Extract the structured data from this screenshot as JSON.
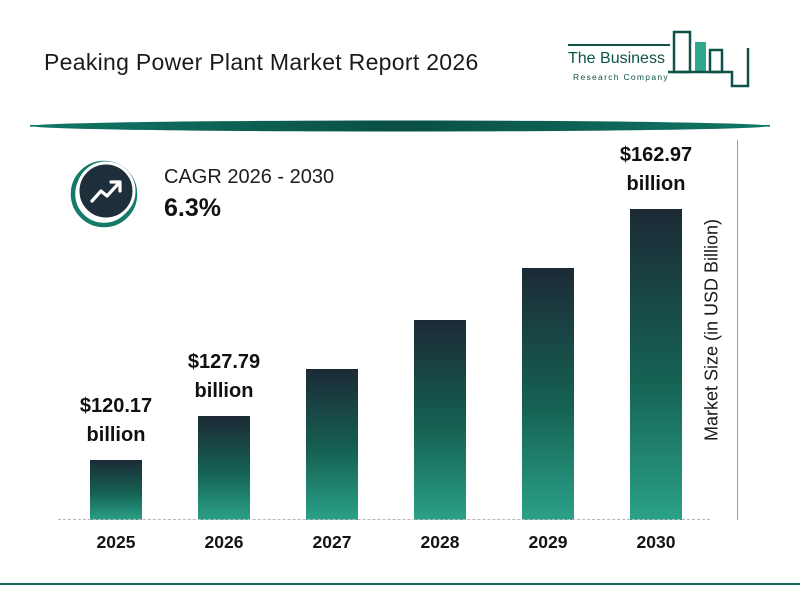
{
  "header": {
    "title": "Peaking Power Plant Market Report 2026"
  },
  "logo": {
    "line1": "The Business",
    "line2": "Research Company"
  },
  "cagr": {
    "label": "CAGR 2026 - 2030",
    "value": "6.3%"
  },
  "chart_data": {
    "type": "bar",
    "title": "Peaking Power Plant Market Report 2026",
    "xlabel": "",
    "ylabel": "Market Size (in USD Billion)",
    "categories": [
      "2025",
      "2026",
      "2027",
      "2028",
      "2029",
      "2030"
    ],
    "values": [
      120.17,
      127.79,
      135.8,
      144.1,
      153.0,
      162.97
    ],
    "labeled_values": {
      "2025": "$120.17 billion",
      "2026": "$127.79 billion",
      "2030": "$162.97 billion"
    },
    "ylim": [
      110,
      168
    ],
    "grid": "dashed baseline only",
    "legend": "none",
    "bars": [
      {
        "year": "2025",
        "value": 120.17,
        "label_amount": "$120.17",
        "label_unit": "billion"
      },
      {
        "year": "2026",
        "value": 127.79,
        "label_amount": "$127.79",
        "label_unit": "billion"
      },
      {
        "year": "2027",
        "value": 135.8,
        "label_amount": "",
        "label_unit": ""
      },
      {
        "year": "2028",
        "value": 144.1,
        "label_amount": "",
        "label_unit": ""
      },
      {
        "year": "2029",
        "value": 153.0,
        "label_amount": "",
        "label_unit": ""
      },
      {
        "year": "2030",
        "value": 162.97,
        "label_amount": "$162.97",
        "label_unit": "billion"
      }
    ],
    "colors": {
      "bar_top": "#1c2a36",
      "bar_mid": "#156253",
      "bar_bottom": "#2ba188"
    }
  },
  "colors": {
    "accent_teal": "#0e6e5e",
    "logo_teal": "#0f5348",
    "logo_fill_green": "#2fa98e",
    "icon_navy": "#1e2f3b",
    "text_dark": "#1b1b1b"
  }
}
